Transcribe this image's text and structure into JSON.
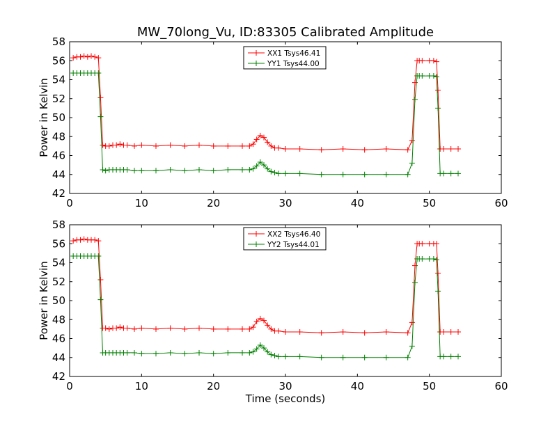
{
  "figure": {
    "title": "MW_70long_Vu, ID:83305 Calibrated Amplitude"
  },
  "chart_data": [
    {
      "type": "line",
      "title": "MW_70long_Vu, ID:83305 Calibrated Amplitude",
      "xlabel": "",
      "ylabel": "Power in Kelvin",
      "xlim": [
        0,
        60
      ],
      "ylim": [
        42,
        58
      ],
      "xticks": [
        "0",
        "10",
        "20",
        "30",
        "40",
        "50",
        "60"
      ],
      "yticks": [
        "42",
        "44",
        "46",
        "48",
        "50",
        "52",
        "54",
        "56",
        "58"
      ],
      "grid": false,
      "legend_position": "top-center",
      "series": [
        {
          "name": "XX1 Tsys46.41",
          "color": "#ff0000",
          "marker": "plus",
          "x": [
            0.5,
            1.0,
            1.5,
            2.0,
            2.5,
            3.0,
            3.5,
            4.0,
            4.3,
            4.6,
            5.0,
            5.5,
            6.0,
            6.5,
            7.0,
            7.5,
            8.0,
            9.0,
            10.0,
            12.0,
            14.0,
            16.0,
            18.0,
            20.0,
            22.0,
            24.0,
            25.0,
            25.5,
            26.0,
            26.5,
            27.0,
            27.5,
            28.0,
            28.5,
            29.0,
            30.0,
            32.0,
            35.0,
            38.0,
            41.0,
            44.0,
            47.0,
            47.6,
            48.0,
            48.3,
            48.6,
            49.0,
            50.0,
            50.6,
            51.0,
            51.2,
            51.5,
            52.0,
            53.0,
            54.0
          ],
          "y": [
            56.3,
            56.4,
            56.4,
            56.5,
            56.4,
            56.5,
            56.4,
            56.3,
            52.1,
            47.1,
            47.0,
            47.0,
            47.1,
            47.1,
            47.2,
            47.1,
            47.1,
            47.0,
            47.1,
            47.0,
            47.1,
            47.0,
            47.1,
            47.0,
            47.0,
            47.0,
            47.0,
            47.2,
            47.7,
            48.1,
            47.9,
            47.4,
            47.0,
            46.8,
            46.8,
            46.7,
            46.7,
            46.6,
            46.7,
            46.6,
            46.7,
            46.6,
            47.6,
            53.7,
            56.0,
            56.0,
            56.0,
            56.0,
            56.0,
            55.9,
            52.9,
            46.7,
            46.7,
            46.7,
            46.7
          ]
        },
        {
          "name": "YY1 Tsys44.00",
          "color": "#008000",
          "marker": "plus",
          "x": [
            0.5,
            1.0,
            1.5,
            2.0,
            2.5,
            3.0,
            3.5,
            4.0,
            4.3,
            4.6,
            5.0,
            5.5,
            6.0,
            6.5,
            7.0,
            7.5,
            8.0,
            9.0,
            10.0,
            12.0,
            14.0,
            16.0,
            18.0,
            20.0,
            22.0,
            24.0,
            25.0,
            25.5,
            26.0,
            26.5,
            27.0,
            27.5,
            28.0,
            28.5,
            29.0,
            30.0,
            32.0,
            35.0,
            38.0,
            41.0,
            44.0,
            47.0,
            47.6,
            48.0,
            48.3,
            48.6,
            49.0,
            50.0,
            50.6,
            51.0,
            51.2,
            51.5,
            52.0,
            53.0,
            54.0
          ],
          "y": [
            54.7,
            54.7,
            54.7,
            54.7,
            54.7,
            54.7,
            54.7,
            54.7,
            50.1,
            44.5,
            44.4,
            44.5,
            44.5,
            44.5,
            44.5,
            44.5,
            44.5,
            44.4,
            44.4,
            44.4,
            44.5,
            44.4,
            44.5,
            44.4,
            44.5,
            44.5,
            44.5,
            44.6,
            44.9,
            45.3,
            45.0,
            44.6,
            44.3,
            44.2,
            44.1,
            44.1,
            44.1,
            44.0,
            44.0,
            44.0,
            44.0,
            44.0,
            45.2,
            51.9,
            54.4,
            54.4,
            54.4,
            54.4,
            54.4,
            54.3,
            51.0,
            44.1,
            44.1,
            44.1,
            44.1
          ]
        }
      ]
    },
    {
      "type": "line",
      "title": "",
      "xlabel": "Time (seconds)",
      "ylabel": "Power in Kelvin",
      "xlim": [
        0,
        60
      ],
      "ylim": [
        42,
        58
      ],
      "xticks": [
        "0",
        "10",
        "20",
        "30",
        "40",
        "50",
        "60"
      ],
      "yticks": [
        "42",
        "44",
        "46",
        "48",
        "50",
        "52",
        "54",
        "56",
        "58"
      ],
      "grid": false,
      "legend_position": "top-center",
      "series": [
        {
          "name": "XX2 Tsys46.40",
          "color": "#ff0000",
          "marker": "plus",
          "x": [
            0.5,
            1.0,
            1.5,
            2.0,
            2.5,
            3.0,
            3.5,
            4.0,
            4.3,
            4.6,
            5.0,
            5.5,
            6.0,
            6.5,
            7.0,
            7.5,
            8.0,
            9.0,
            10.0,
            12.0,
            14.0,
            16.0,
            18.0,
            20.0,
            22.0,
            24.0,
            25.0,
            25.5,
            26.0,
            26.5,
            27.0,
            27.5,
            28.0,
            28.5,
            29.0,
            30.0,
            32.0,
            35.0,
            38.0,
            41.0,
            44.0,
            47.0,
            47.6,
            48.0,
            48.3,
            48.6,
            49.0,
            50.0,
            50.6,
            51.0,
            51.2,
            51.5,
            52.0,
            53.0,
            54.0
          ],
          "y": [
            56.3,
            56.4,
            56.4,
            56.5,
            56.4,
            56.4,
            56.4,
            56.3,
            52.2,
            47.1,
            47.1,
            47.0,
            47.1,
            47.1,
            47.2,
            47.1,
            47.1,
            47.0,
            47.1,
            47.0,
            47.1,
            47.0,
            47.1,
            47.0,
            47.0,
            47.0,
            47.0,
            47.2,
            47.8,
            48.1,
            47.9,
            47.4,
            47.0,
            46.8,
            46.8,
            46.7,
            46.7,
            46.6,
            46.7,
            46.6,
            46.7,
            46.6,
            47.7,
            53.7,
            56.0,
            56.0,
            56.0,
            56.0,
            56.0,
            56.0,
            52.9,
            46.7,
            46.7,
            46.7,
            46.7
          ]
        },
        {
          "name": "YY2 Tsys44.01",
          "color": "#008000",
          "marker": "plus",
          "x": [
            0.5,
            1.0,
            1.5,
            2.0,
            2.5,
            3.0,
            3.5,
            4.0,
            4.3,
            4.6,
            5.0,
            5.5,
            6.0,
            6.5,
            7.0,
            7.5,
            8.0,
            9.0,
            10.0,
            12.0,
            14.0,
            16.0,
            18.0,
            20.0,
            22.0,
            24.0,
            25.0,
            25.5,
            26.0,
            26.5,
            27.0,
            27.5,
            28.0,
            28.5,
            29.0,
            30.0,
            32.0,
            35.0,
            38.0,
            41.0,
            44.0,
            47.0,
            47.6,
            48.0,
            48.3,
            48.6,
            49.0,
            50.0,
            50.6,
            51.0,
            51.2,
            51.5,
            52.0,
            53.0,
            54.0
          ],
          "y": [
            54.7,
            54.7,
            54.7,
            54.7,
            54.7,
            54.7,
            54.7,
            54.7,
            50.1,
            44.5,
            44.5,
            44.5,
            44.5,
            44.5,
            44.5,
            44.5,
            44.5,
            44.5,
            44.4,
            44.4,
            44.5,
            44.4,
            44.5,
            44.4,
            44.5,
            44.5,
            44.5,
            44.6,
            44.9,
            45.3,
            45.0,
            44.6,
            44.3,
            44.2,
            44.1,
            44.1,
            44.1,
            44.0,
            44.0,
            44.0,
            44.0,
            44.0,
            45.2,
            51.9,
            54.4,
            54.4,
            54.4,
            54.4,
            54.4,
            54.3,
            51.0,
            44.1,
            44.1,
            44.1,
            44.1
          ]
        }
      ]
    }
  ]
}
